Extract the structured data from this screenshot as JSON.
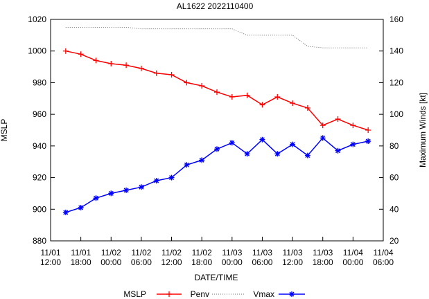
{
  "chart_data": {
    "type": "line",
    "title": "AL1622 2022110400",
    "xlabel": "DATE/TIME",
    "ylabel_left": "MSLP",
    "ylabel_right": "Maximum Winds [kt]",
    "x_ticks": [
      {
        "line1": "11/01",
        "line2": "12:00"
      },
      {
        "line1": "11/01",
        "line2": "18:00"
      },
      {
        "line1": "11/02",
        "line2": "00:00"
      },
      {
        "line1": "11/02",
        "line2": "06:00"
      },
      {
        "line1": "11/02",
        "line2": "12:00"
      },
      {
        "line1": "11/02",
        "line2": "18:00"
      },
      {
        "line1": "11/03",
        "line2": "00:00"
      },
      {
        "line1": "11/03",
        "line2": "06:00"
      },
      {
        "line1": "11/03",
        "line2": "12:00"
      },
      {
        "line1": "11/03",
        "line2": "18:00"
      },
      {
        "line1": "11/04",
        "line2": "00:00"
      },
      {
        "line1": "11/04",
        "line2": "06:00"
      }
    ],
    "x_hours_range": [
      0,
      66
    ],
    "y_left": {
      "range": [
        880,
        1020
      ],
      "ticks": [
        880,
        900,
        920,
        940,
        960,
        980,
        1000,
        1020
      ]
    },
    "y_right": {
      "range": [
        20,
        160
      ],
      "ticks": [
        20,
        40,
        60,
        80,
        100,
        120,
        140,
        160
      ]
    },
    "legend_position": "bottom",
    "series": [
      {
        "name": "MSLP",
        "axis": "left",
        "color": "#ff0000",
        "marker": "plus",
        "x_hours": [
          3,
          6,
          9,
          12,
          15,
          18,
          21,
          24,
          27,
          30,
          33,
          36,
          39,
          42,
          45,
          48,
          51,
          54,
          57,
          60,
          63
        ],
        "values": [
          1000,
          998,
          994,
          992,
          991,
          989,
          986,
          985,
          980,
          978,
          974,
          971,
          972,
          966,
          971,
          967,
          964,
          953,
          957,
          953,
          950
        ]
      },
      {
        "name": "Penv",
        "axis": "left",
        "color": "#444444",
        "marker": "none",
        "dotted": true,
        "x_hours": [
          3,
          6,
          9,
          12,
          15,
          18,
          21,
          24,
          27,
          30,
          33,
          36,
          39,
          42,
          45,
          48,
          51,
          54,
          57,
          60,
          63
        ],
        "values": [
          1015,
          1015,
          1015,
          1015,
          1015,
          1014,
          1014,
          1014,
          1014,
          1014,
          1014,
          1014,
          1010,
          1010,
          1010,
          1010,
          1003,
          1002,
          1002,
          1002,
          1002
        ]
      },
      {
        "name": "Vmax",
        "axis": "right",
        "color": "#0000ff",
        "marker": "star",
        "x_hours": [
          3,
          6,
          9,
          12,
          15,
          18,
          21,
          24,
          27,
          30,
          33,
          36,
          39,
          42,
          45,
          48,
          51,
          54,
          57,
          60,
          63
        ],
        "values": [
          38,
          41,
          47,
          50,
          52,
          54,
          58,
          60,
          68,
          71,
          78,
          82,
          75,
          84,
          75,
          81,
          74,
          85,
          77,
          81,
          83
        ]
      }
    ]
  }
}
